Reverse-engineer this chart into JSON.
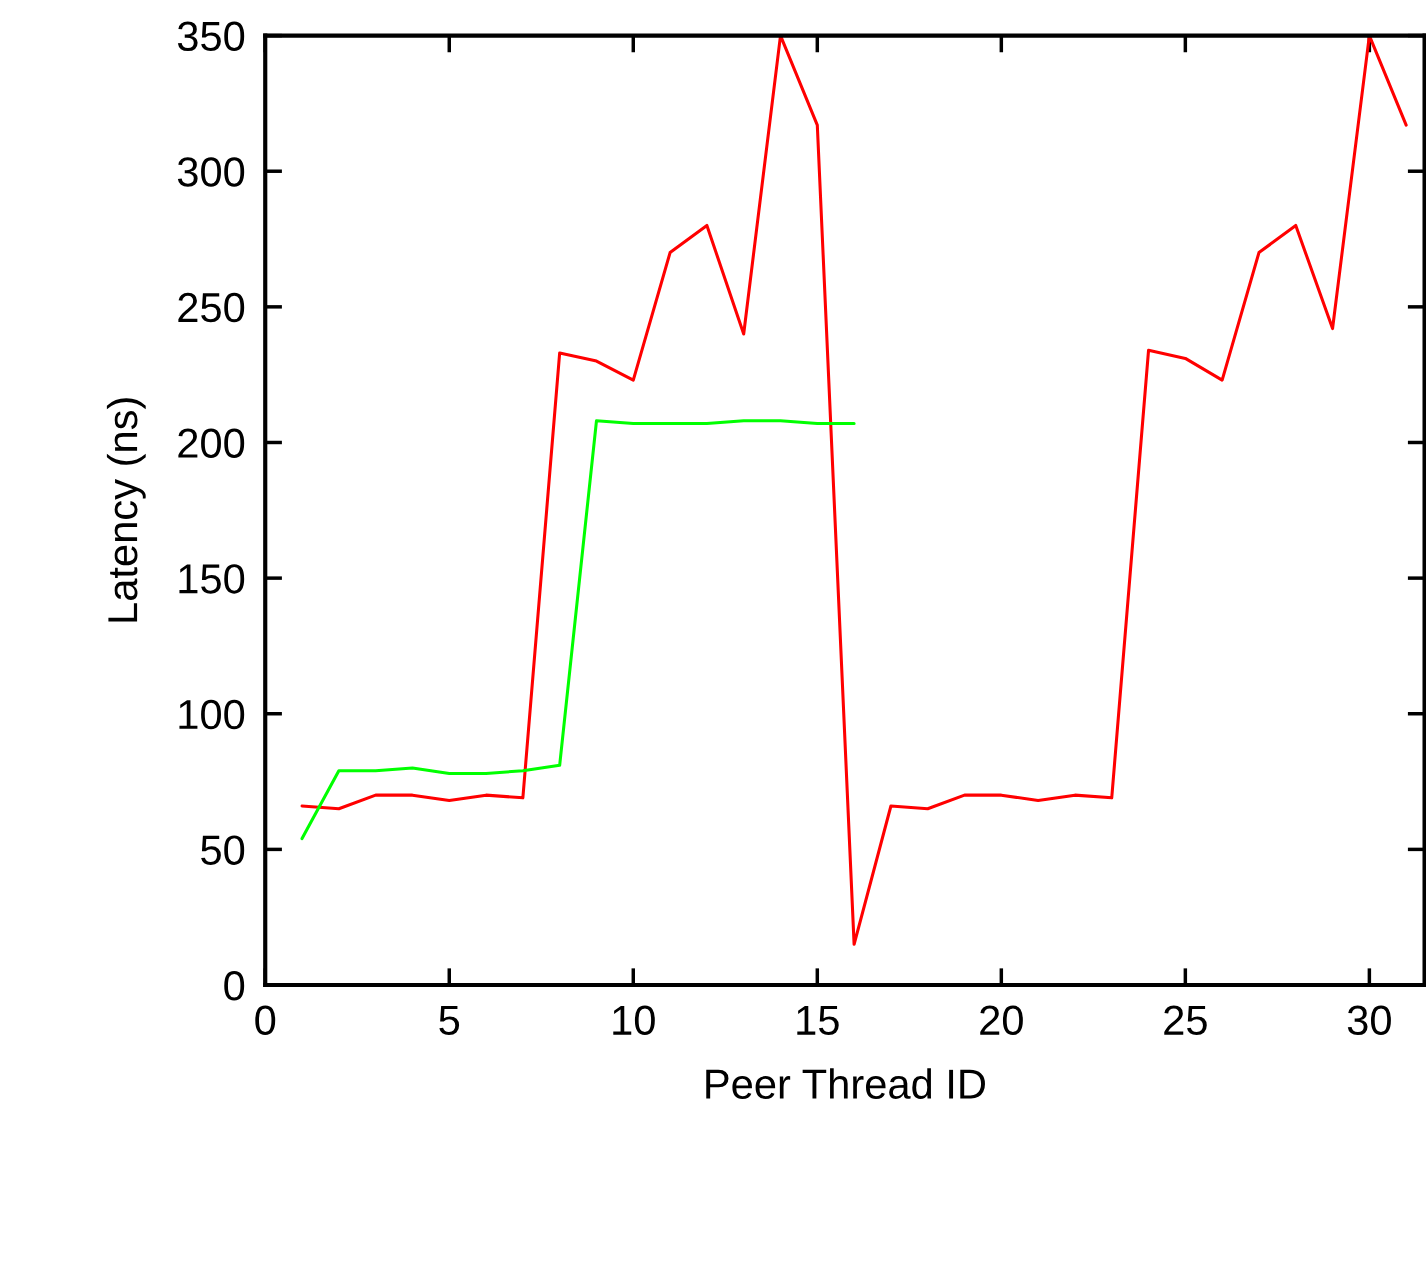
{
  "chart_data": {
    "type": "line",
    "xlabel": "Peer Thread ID",
    "ylabel": "Latency (ns)",
    "xlim": [
      0,
      31.5
    ],
    "xticks": [
      0,
      5,
      10,
      15,
      20,
      25,
      30
    ],
    "ylim": [
      0,
      350
    ],
    "yticks": [
      0,
      50,
      100,
      150,
      200,
      250,
      300,
      350
    ],
    "grid": false,
    "marker": "none",
    "line_style": "solid",
    "series": [
      {
        "color": "#ff0000",
        "x": [
          1,
          2,
          3,
          4,
          5,
          6,
          7,
          8,
          9,
          10,
          11,
          12,
          13,
          14,
          15,
          16,
          17,
          18,
          19,
          20,
          21,
          22,
          23,
          24,
          25,
          26,
          27,
          28,
          29,
          30,
          31
        ],
        "values": [
          66,
          65,
          70,
          70,
          68,
          70,
          69,
          233,
          230,
          223,
          270,
          280,
          240,
          350,
          317,
          15,
          66,
          65,
          70,
          70,
          68,
          70,
          69,
          234,
          231,
          223,
          270,
          280,
          242,
          350,
          317
        ]
      },
      {
        "color": "#00ff00",
        "x": [
          1,
          2,
          3,
          4,
          5,
          6,
          7,
          8,
          9,
          10,
          11,
          12,
          13,
          14,
          15,
          16
        ],
        "values": [
          54,
          79,
          79,
          80,
          78,
          78,
          79,
          81,
          208,
          207,
          207,
          207,
          208,
          208,
          207,
          207
        ]
      }
    ]
  }
}
